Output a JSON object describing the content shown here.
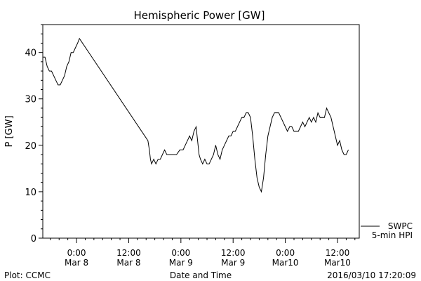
{
  "chart_data": {
    "type": "line",
    "title": "Hemispheric Power [GW]",
    "xlabel": "Date and Time",
    "ylabel": "P [GW]",
    "ylim": [
      0,
      46
    ],
    "xlim": [
      "2016-03-07 16:15",
      "2016-03-10 17:00"
    ],
    "grid": false,
    "x_ticks": [
      {
        "time": "2016-03-08 00:00",
        "line1": "0:00",
        "line2": "Mar 8"
      },
      {
        "time": "2016-03-08 12:00",
        "line1": "12:00",
        "line2": "Mar 8"
      },
      {
        "time": "2016-03-09 00:00",
        "line1": "0:00",
        "line2": "Mar 9"
      },
      {
        "time": "2016-03-09 12:00",
        "line1": "12:00",
        "line2": "Mar 9"
      },
      {
        "time": "2016-03-10 00:00",
        "line1": "0:00",
        "line2": "Mar10"
      },
      {
        "time": "2016-03-10 12:00",
        "line1": "12:00",
        "line2": "Mar10"
      }
    ],
    "y_ticks": [
      0,
      10,
      20,
      30,
      40
    ],
    "y_minor_step": 2,
    "x_minor_step_hours": 2,
    "series": [
      {
        "legend_lines": [
          "SWPC",
          "5-min HPI"
        ],
        "color": "#000000",
        "points": [
          [
            "2016-03-07 16:15",
            39
          ],
          [
            "2016-03-07 16:45",
            39
          ],
          [
            "2016-03-07 17:15",
            37
          ],
          [
            "2016-03-07 17:45",
            36
          ],
          [
            "2016-03-07 18:15",
            36
          ],
          [
            "2016-03-07 18:45",
            35
          ],
          [
            "2016-03-07 19:15",
            34
          ],
          [
            "2016-03-07 19:45",
            33
          ],
          [
            "2016-03-07 20:15",
            33
          ],
          [
            "2016-03-07 20:45",
            34
          ],
          [
            "2016-03-07 21:15",
            35
          ],
          [
            "2016-03-07 21:45",
            37
          ],
          [
            "2016-03-07 22:15",
            38
          ],
          [
            "2016-03-07 22:45",
            40
          ],
          [
            "2016-03-07 23:15",
            40
          ],
          [
            "2016-03-07 23:45",
            41
          ],
          [
            "2016-03-08 00:15",
            42
          ],
          [
            "2016-03-08 00:40",
            43
          ],
          [
            "2016-03-08 16:25",
            21
          ],
          [
            "2016-03-08 16:45",
            19
          ],
          [
            "2016-03-08 17:00",
            17
          ],
          [
            "2016-03-08 17:15",
            16
          ],
          [
            "2016-03-08 17:45",
            17
          ],
          [
            "2016-03-08 18:15",
            16
          ],
          [
            "2016-03-08 18:45",
            17
          ],
          [
            "2016-03-08 19:15",
            17
          ],
          [
            "2016-03-08 19:45",
            18
          ],
          [
            "2016-03-08 20:15",
            19
          ],
          [
            "2016-03-08 20:45",
            18
          ],
          [
            "2016-03-08 21:30",
            18
          ],
          [
            "2016-03-08 22:15",
            18
          ],
          [
            "2016-03-08 23:00",
            18
          ],
          [
            "2016-03-08 23:45",
            19
          ],
          [
            "2016-03-09 00:30",
            19
          ],
          [
            "2016-03-09 01:00",
            20
          ],
          [
            "2016-03-09 01:30",
            21
          ],
          [
            "2016-03-09 02:00",
            22
          ],
          [
            "2016-03-09 02:30",
            21
          ],
          [
            "2016-03-09 03:00",
            23
          ],
          [
            "2016-03-09 03:30",
            24
          ],
          [
            "2016-03-09 03:50",
            21
          ],
          [
            "2016-03-09 04:10",
            18
          ],
          [
            "2016-03-09 04:30",
            17
          ],
          [
            "2016-03-09 05:00",
            16
          ],
          [
            "2016-03-09 05:30",
            17
          ],
          [
            "2016-03-09 06:00",
            16
          ],
          [
            "2016-03-09 06:30",
            16
          ],
          [
            "2016-03-09 07:00",
            17
          ],
          [
            "2016-03-09 07:30",
            18
          ],
          [
            "2016-03-09 08:00",
            20
          ],
          [
            "2016-03-09 08:30",
            18
          ],
          [
            "2016-03-09 09:00",
            17
          ],
          [
            "2016-03-09 09:30",
            19
          ],
          [
            "2016-03-09 10:00",
            20
          ],
          [
            "2016-03-09 10:30",
            21
          ],
          [
            "2016-03-09 11:00",
            22
          ],
          [
            "2016-03-09 11:30",
            22
          ],
          [
            "2016-03-09 12:00",
            23
          ],
          [
            "2016-03-09 12:30",
            23
          ],
          [
            "2016-03-09 13:00",
            24
          ],
          [
            "2016-03-09 13:30",
            25
          ],
          [
            "2016-03-09 14:00",
            26
          ],
          [
            "2016-03-09 14:30",
            26
          ],
          [
            "2016-03-09 15:00",
            27
          ],
          [
            "2016-03-09 15:30",
            27
          ],
          [
            "2016-03-09 16:00",
            26
          ],
          [
            "2016-03-09 16:30",
            22
          ],
          [
            "2016-03-09 17:00",
            17
          ],
          [
            "2016-03-09 17:30",
            13
          ],
          [
            "2016-03-09 18:00",
            11
          ],
          [
            "2016-03-09 18:30",
            10
          ],
          [
            "2016-03-09 19:00",
            13
          ],
          [
            "2016-03-09 19:30",
            18
          ],
          [
            "2016-03-09 20:00",
            22
          ],
          [
            "2016-03-09 20:30",
            24
          ],
          [
            "2016-03-09 21:00",
            26
          ],
          [
            "2016-03-09 21:30",
            27
          ],
          [
            "2016-03-09 22:00",
            27
          ],
          [
            "2016-03-09 22:30",
            27
          ],
          [
            "2016-03-09 23:00",
            26
          ],
          [
            "2016-03-09 23:30",
            25
          ],
          [
            "2016-03-10 00:00",
            24
          ],
          [
            "2016-03-10 00:30",
            23
          ],
          [
            "2016-03-10 01:00",
            24
          ],
          [
            "2016-03-10 01:30",
            24
          ],
          [
            "2016-03-10 02:00",
            23
          ],
          [
            "2016-03-10 02:30",
            23
          ],
          [
            "2016-03-10 03:00",
            23
          ],
          [
            "2016-03-10 03:30",
            24
          ],
          [
            "2016-03-10 04:00",
            25
          ],
          [
            "2016-03-10 04:30",
            24
          ],
          [
            "2016-03-10 05:00",
            25
          ],
          [
            "2016-03-10 05:30",
            26
          ],
          [
            "2016-03-10 06:00",
            25
          ],
          [
            "2016-03-10 06:30",
            26
          ],
          [
            "2016-03-10 07:00",
            25
          ],
          [
            "2016-03-10 07:30",
            27
          ],
          [
            "2016-03-10 08:00",
            26
          ],
          [
            "2016-03-10 08:30",
            26
          ],
          [
            "2016-03-10 09:00",
            26
          ],
          [
            "2016-03-10 09:30",
            28
          ],
          [
            "2016-03-10 10:00",
            27
          ],
          [
            "2016-03-10 10:30",
            26
          ],
          [
            "2016-03-10 11:00",
            24
          ],
          [
            "2016-03-10 11:30",
            22
          ],
          [
            "2016-03-10 12:00",
            20
          ],
          [
            "2016-03-10 12:30",
            21
          ],
          [
            "2016-03-10 13:00",
            19
          ],
          [
            "2016-03-10 13:30",
            18
          ],
          [
            "2016-03-10 14:00",
            18
          ],
          [
            "2016-03-10 14:30",
            19
          ]
        ]
      }
    ]
  },
  "footer": {
    "plot_credit": "Plot: CCMC",
    "timestamp": "2016/03/10 17:20:09"
  }
}
